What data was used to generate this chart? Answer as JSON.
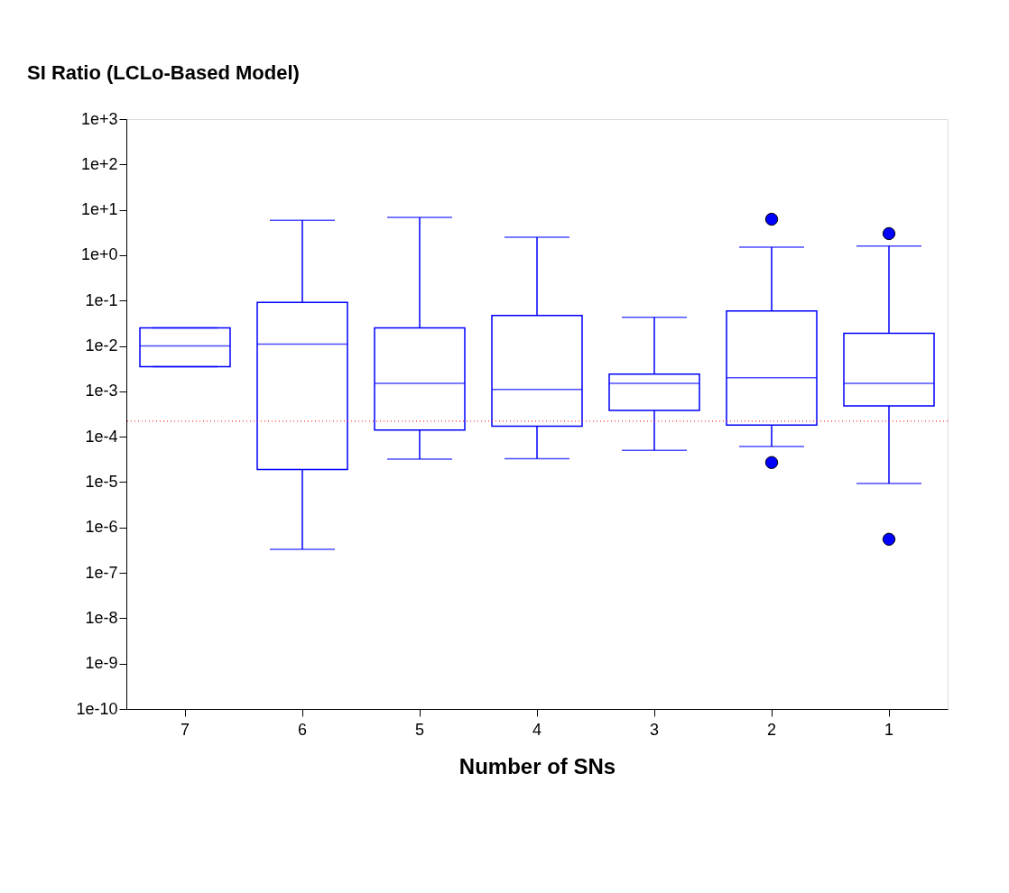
{
  "chart_data": {
    "type": "box",
    "title": "SI Ratio (LCLo-Based Model)",
    "xlabel": "Number of SNs",
    "categories": [
      "7",
      "6",
      "5",
      "4",
      "3",
      "2",
      "1"
    ],
    "color": "#0000ff",
    "marker": "circle",
    "log": "y",
    "grid": false,
    "boxes": [
      {
        "low": 0.0035,
        "q1": 0.0035,
        "median": 0.01,
        "q3": 0.025,
        "high": 0.025
      },
      {
        "low": 3.3e-07,
        "q1": 1.9e-05,
        "median": 0.011,
        "q3": 0.091,
        "high": 5.9
      },
      {
        "low": 3.2e-05,
        "q1": 0.00014,
        "median": 0.0015,
        "q3": 0.025,
        "high": 6.8
      },
      {
        "low": 3.3e-05,
        "q1": 0.00017,
        "median": 0.0011,
        "q3": 0.047,
        "high": 2.5
      },
      {
        "low": 5e-05,
        "q1": 0.00038,
        "median": 0.0015,
        "q3": 0.0024,
        "high": 0.043
      },
      {
        "low": 6.1e-05,
        "q1": 0.00018,
        "median": 0.002,
        "q3": 0.059,
        "high": 1.5,
        "outliers": [
          6.2,
          2.7e-05
        ]
      },
      {
        "low": 9.3e-06,
        "q1": 0.00048,
        "median": 0.0015,
        "q3": 0.019,
        "high": 1.6,
        "outliers": [
          3.0,
          5.5e-07
        ]
      }
    ],
    "ylim": [
      1e-10,
      1000
    ],
    "yticks": [
      {
        "value": 1000,
        "label": "1e+3"
      },
      {
        "value": 100,
        "label": "1e+2"
      },
      {
        "value": 10,
        "label": "1e+1"
      },
      {
        "value": 1,
        "label": "1e+0"
      },
      {
        "value": 0.1,
        "label": "1e-1"
      },
      {
        "value": 0.01,
        "label": "1e-2"
      },
      {
        "value": 0.001,
        "label": "1e-3"
      },
      {
        "value": 0.0001,
        "label": "1e-4"
      },
      {
        "value": 1e-05,
        "label": "1e-5"
      },
      {
        "value": 1e-06,
        "label": "1e-6"
      },
      {
        "value": 1e-07,
        "label": "1e-7"
      },
      {
        "value": 1e-08,
        "label": "1e-8"
      },
      {
        "value": 1e-09,
        "label": "1e-9"
      },
      {
        "value": 1e-10,
        "label": "1e-10"
      }
    ],
    "ref_lines": [
      {
        "axis": "y",
        "value": 0.00022,
        "color": "#ff0000",
        "line_style": "dotted"
      }
    ]
  }
}
